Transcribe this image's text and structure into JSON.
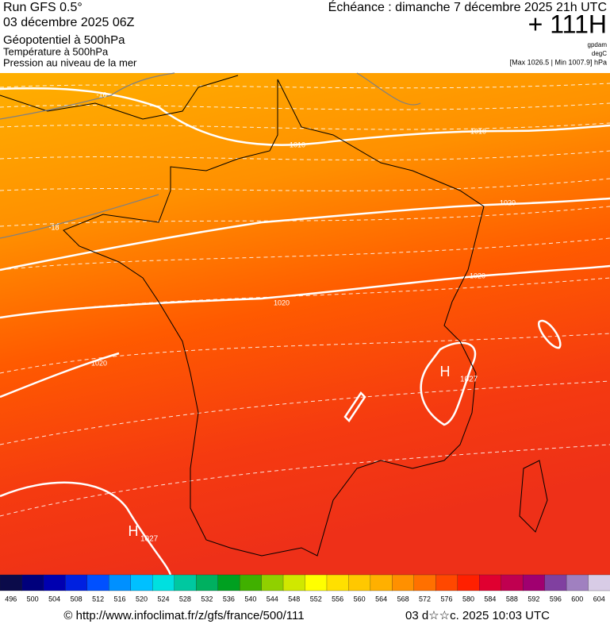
{
  "header": {
    "run": "Run GFS 0.5°",
    "date": "03 décembre 2025 06Z",
    "field1": "Géopotentiel à 500hPa",
    "field2": "Température à 500hPa",
    "field3": "Pression au niveau de la mer",
    "forecast": "Échéance : dimanche 7 décembre 2025 21h UTC",
    "lead": "+ 111H",
    "unit1": "gpdam",
    "unit2": "degC",
    "range": "[Max 1026.5 | Min 1007.9] hPa"
  },
  "map": {
    "isobar_labels": [
      "1010",
      "1010",
      "1020",
      "1020",
      "1020",
      "1020"
    ],
    "temp_labels": [
      "-16",
      "-18"
    ],
    "highs": [
      {
        "symbol": "H",
        "value": "1027"
      },
      {
        "symbol": "H",
        "value": "1027"
      }
    ]
  },
  "colorbar": {
    "labels": [
      "496",
      "500",
      "504",
      "508",
      "512",
      "516",
      "520",
      "524",
      "528",
      "532",
      "536",
      "540",
      "544",
      "548",
      "552",
      "556",
      "560",
      "564",
      "568",
      "572",
      "576",
      "580",
      "584",
      "588",
      "592",
      "596",
      "600",
      "604"
    ],
    "colors": [
      "#0b0b4a",
      "#00007c",
      "#0000b0",
      "#0020e0",
      "#0050ff",
      "#0090ff",
      "#00c0ff",
      "#00e0e0",
      "#00c8a0",
      "#00b060",
      "#00a020",
      "#40b000",
      "#90d000",
      "#d0e800",
      "#ffff00",
      "#ffe000",
      "#ffc800",
      "#ffb000",
      "#ff9000",
      "#ff7000",
      "#ff4800",
      "#ff2000",
      "#e00030",
      "#c00050",
      "#a00070",
      "#8040a0",
      "#a080c0",
      "#d8cce6"
    ]
  },
  "footer": {
    "source": "© http://www.infoclimat.fr/z/gfs/france/500/111",
    "time": "03 d☆☆c. 2025 10:03 UTC"
  }
}
